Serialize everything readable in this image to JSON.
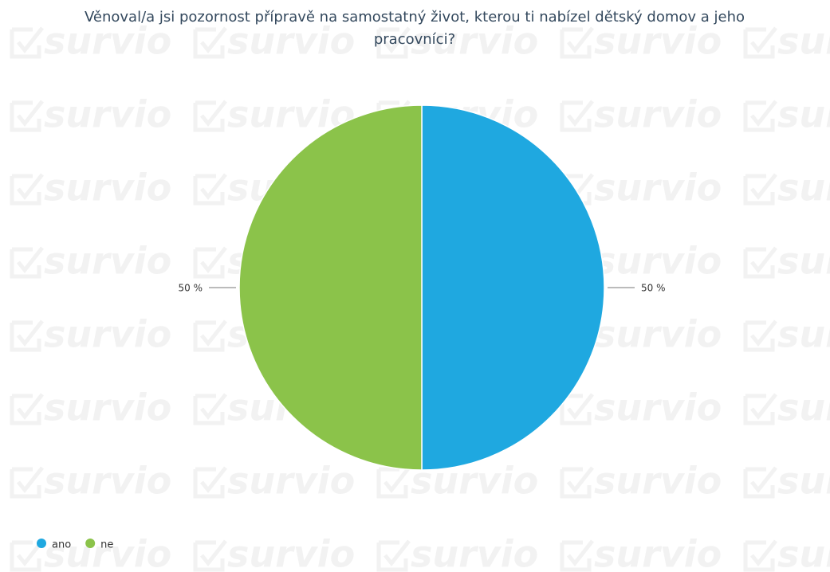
{
  "chart_data": {
    "type": "pie",
    "title": "Věnoval/a jsi pozornost přípravě na samostatný život, kterou ti nabízel dětský domov a jeho pracovníci?",
    "categories": [
      "ano",
      "ne"
    ],
    "values": [
      50,
      50
    ],
    "value_labels": [
      "50 %",
      "50 %"
    ],
    "colors": [
      "#1fa8e0",
      "#8bc34a"
    ],
    "watermark": "survio"
  }
}
